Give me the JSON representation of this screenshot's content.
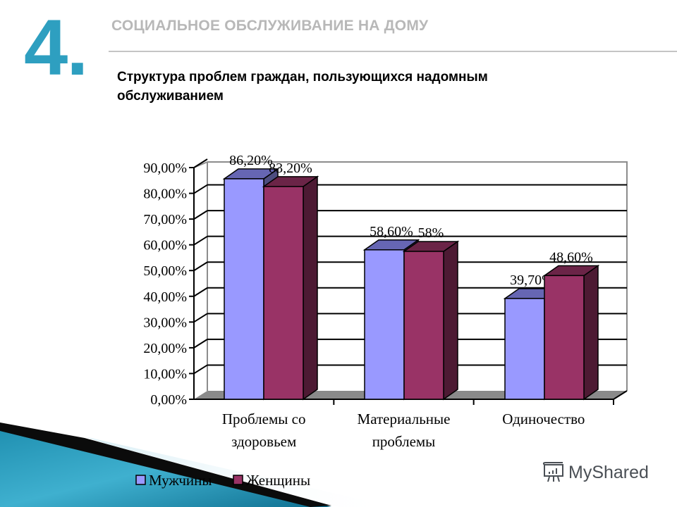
{
  "slide": {
    "number": "4.",
    "section_title": "СОЦИАЛЬНОЕ ОБСЛУЖИВАНИЕ НА ДОМУ",
    "subtitle_line1": "Структура проблем граждан, пользующихся надомным",
    "subtitle_line2": "обслуживанием",
    "accent_color": "#2e9fc0"
  },
  "watermark": {
    "text": "MyShared",
    "icon": "presentation-board-icon"
  },
  "chart_data": {
    "type": "bar",
    "style": "3d-clustered-column",
    "title": "Структура проблем граждан, пользующихся надомным обслуживанием",
    "categories": [
      "Проблемы со здоровьем",
      "Материальные проблемы",
      "Одиночество"
    ],
    "category_lines": [
      [
        "Проблемы со",
        "здоровьем"
      ],
      [
        "Материальные",
        "проблемы"
      ],
      [
        "Одиночество"
      ]
    ],
    "series": [
      {
        "name": "Мужчины",
        "values": [
          86.2,
          58.6,
          39.7
        ],
        "labels": [
          "86,20%",
          "58,60%",
          "39,70%"
        ],
        "color": "#9999ff",
        "top_color": "#6666b3",
        "side_color": "#4d4d80"
      },
      {
        "name": "Женщины",
        "values": [
          83.2,
          58.0,
          48.6
        ],
        "labels": [
          "83,20%",
          "58%",
          "48,60%"
        ],
        "color": "#993366",
        "top_color": "#6b2447",
        "side_color": "#4d1a33"
      }
    ],
    "xlabel": "",
    "ylabel": "",
    "ylim": [
      0,
      90
    ],
    "yticks": [
      "0,00%",
      "10,00%",
      "20,00%",
      "30,00%",
      "40,00%",
      "50,00%",
      "60,00%",
      "70,00%",
      "80,00%",
      "90,00%"
    ],
    "grid": true,
    "legend_position": "bottom"
  }
}
